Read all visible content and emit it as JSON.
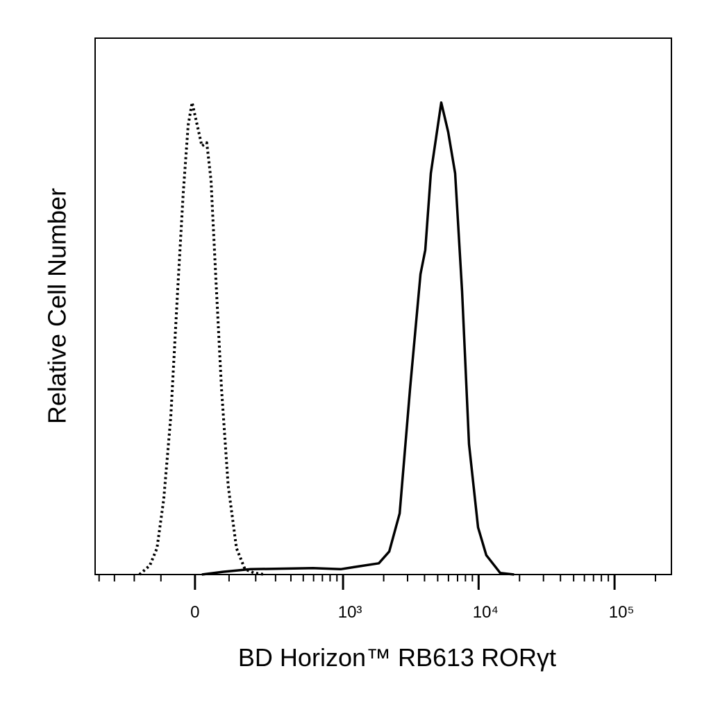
{
  "chart_data": {
    "type": "line",
    "x_label": "BD Horizon™ RB613 RORγt",
    "y_label": "Relative Cell Number",
    "xscale": "biexponential",
    "xlim": [
      -430,
      262000
    ],
    "xticks": [
      0,
      {
        "value": 1000,
        "label": "10³"
      },
      {
        "value": 10000,
        "label": "10⁴"
      },
      {
        "value": 100000,
        "label": "10⁵"
      }
    ],
    "xminor_ticks": [
      -400,
      -300,
      -200,
      -100,
      100,
      200,
      300,
      400,
      500,
      600,
      700,
      800,
      900,
      2000,
      3000,
      4000,
      5000,
      6000,
      7000,
      8000,
      9000,
      20000,
      30000,
      40000,
      50000,
      60000,
      70000,
      80000,
      90000,
      200000
    ],
    "ylim": [
      0,
      100
    ],
    "series": [
      {
        "color": "#000000",
        "dash": "dotted",
        "x": [
          -178,
          -138,
          -113,
          -91,
          -69,
          -49,
          -33,
          -19,
          -8,
          6,
          19,
          33,
          45,
          59,
          76,
          97,
          125,
          156,
          193,
          241
        ],
        "values": [
          0,
          1.7,
          4.9,
          14,
          29.5,
          52.8,
          70.9,
          83.8,
          88,
          83.8,
          79.9,
          80.5,
          73.5,
          55.4,
          34.7,
          16.6,
          4.9,
          1,
          0.3,
          0
        ]
      },
      {
        "color": "#000000",
        "dash": "solid",
        "x": [
          19,
          80,
          178,
          594,
          959,
          1371,
          1842,
          2198,
          2622,
          3131,
          3733,
          4051,
          4449,
          5310,
          5973,
          6721,
          7555,
          8498,
          9902,
          11390,
          14415,
          18237
        ],
        "values": [
          0,
          0.5,
          1,
          1.2,
          1,
          1.6,
          2.1,
          4.3,
          11.4,
          34.7,
          56,
          60.5,
          74.8,
          88,
          82.5,
          74.8,
          52.8,
          24.3,
          8.8,
          3.6,
          0.3,
          0
        ]
      }
    ]
  }
}
